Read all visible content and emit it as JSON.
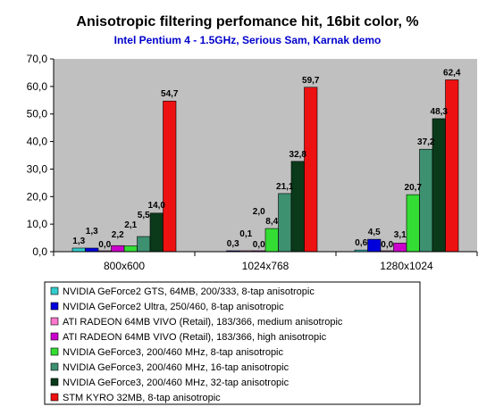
{
  "chart_data": {
    "type": "bar",
    "title": "Anisotropic filtering perfomance hit, 16bit color, %",
    "subtitle": "Intel Pentium 4 - 1.5GHz, Serious Sam, Karnak demo",
    "categories": [
      "800x600",
      "1024x768",
      "1280x1024"
    ],
    "ylim": [
      0,
      70
    ],
    "yticks": [
      "0,0",
      "10,0",
      "20,0",
      "30,0",
      "40,0",
      "50,0",
      "60,0",
      "70,0"
    ],
    "grid": false,
    "legend_position": "bottom",
    "series": [
      {
        "name": "NVIDIA GeForce2 GTS, 64MB, 200/333, 8-tap anisotropic",
        "color": "#33cccc",
        "values": [
          1.3,
          null,
          0.6
        ],
        "labels": [
          "1,3",
          "",
          "0,6"
        ]
      },
      {
        "name": "NVIDIA GeForce2 Ultra, 250/460, 8-tap anisotropic",
        "color": "#0000dd",
        "values": [
          1.3,
          0.3,
          4.5
        ],
        "labels": [
          "1,3",
          "0,3",
          "4,5"
        ]
      },
      {
        "name": "ATI RADEON 64MB VIVO (Retail), 183/366, medium anisotropic",
        "color": "#ff77cc",
        "values": [
          0.0,
          0.1,
          0.0
        ],
        "labels": [
          "0,0",
          "0,1",
          "0,0"
        ]
      },
      {
        "name": "ATI RADEON 64MB VIVO (Retail), 183/366, high anisotropic",
        "color": "#cc00cc",
        "values": [
          2.2,
          0.0,
          3.1
        ],
        "labels": [
          "2,2",
          "0,0",
          "3,1"
        ]
      },
      {
        "name": "NVIDIA GeForce3, 200/460 MHz, 8-tap anisotropic",
        "color": "#33dd33",
        "values": [
          2.1,
          8.4,
          20.7
        ],
        "labels": [
          "2,1",
          "8,4",
          "20,7"
        ]
      },
      {
        "name": "NVIDIA GeForce3, 200/460 MHz, 16-tap anisotropic",
        "color": "#3d9070",
        "values": [
          5.5,
          21.1,
          37.2
        ],
        "labels": [
          "5,5",
          "21,1",
          "37,2"
        ]
      },
      {
        "name": "NVIDIA GeForce3, 200/460 MHz, 32-tap anisotropic",
        "color": "#0a3a1a",
        "values": [
          14.0,
          32.8,
          48.3
        ],
        "labels": [
          "14,0",
          "32,8",
          "48,3"
        ]
      },
      {
        "name": "STM KYRO 32MB, 8-tap anisotropic",
        "color": "#ee1111",
        "values": [
          54.7,
          59.7,
          62.4
        ],
        "labels": [
          "54,7",
          "59,7",
          "62,4"
        ]
      }
    ],
    "extra_labels": [
      {
        "category": 1,
        "series": 3,
        "text": "2,0"
      }
    ]
  }
}
